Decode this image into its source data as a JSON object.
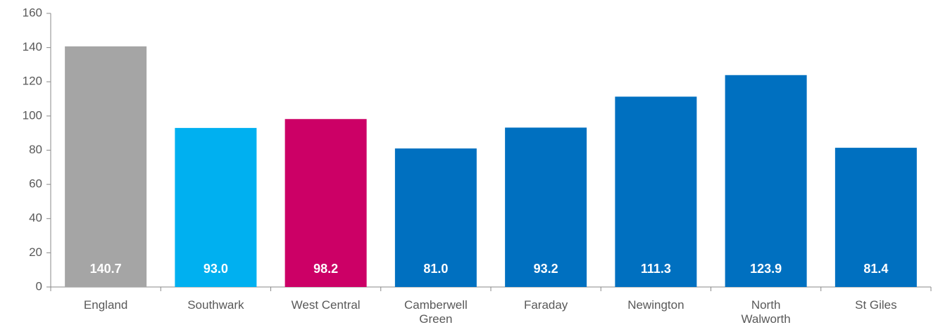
{
  "chart_data": {
    "type": "bar",
    "categories": [
      "England",
      "Southwark",
      "West Central",
      "Camberwell Green",
      "Faraday",
      "Newington",
      "North Walworth",
      "St Giles"
    ],
    "values": [
      140.7,
      93.0,
      98.2,
      81.0,
      93.2,
      111.3,
      123.9,
      81.4
    ],
    "value_labels": [
      "140.7",
      "93.0",
      "98.2",
      "81.0",
      "93.2",
      "111.3",
      "123.9",
      "81.4"
    ],
    "colors": [
      "#a5a5a5",
      "#00b0f0",
      "#cc0066",
      "#0070c0",
      "#0070c0",
      "#0070c0",
      "#0070c0",
      "#0070c0"
    ],
    "ylim": [
      0,
      160
    ],
    "yticks": [
      0,
      20,
      40,
      60,
      80,
      100,
      120,
      140,
      160
    ],
    "grid": false
  }
}
